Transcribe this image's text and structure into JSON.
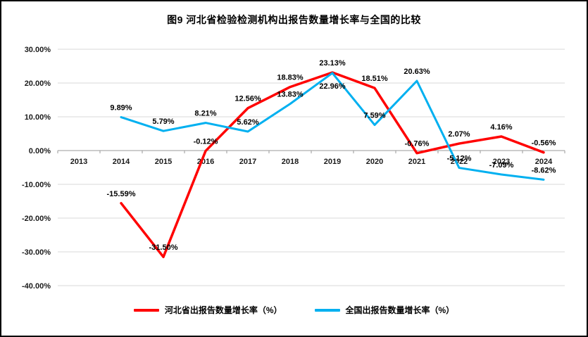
{
  "title": "图9 河北省检验检测机构出报告数量增长率与全国的比较",
  "chart_data": {
    "type": "line",
    "categories": [
      "2013",
      "2014",
      "2015",
      "2016",
      "2017",
      "2018",
      "2019",
      "2020",
      "2021",
      "2022",
      "2023",
      "2024"
    ],
    "series": [
      {
        "name": "河北省出报告数量增长率（%）",
        "color": "#FF0000",
        "values": [
          null,
          -15.59,
          -31.5,
          -0.12,
          12.56,
          18.83,
          23.13,
          18.51,
          -0.76,
          2.07,
          4.16,
          -0.56
        ]
      },
      {
        "name": "全国出报告数量增长率（%）",
        "color": "#00B0F0",
        "values": [
          null,
          9.89,
          5.79,
          8.21,
          5.62,
          13.83,
          22.96,
          7.59,
          20.63,
          -5.12,
          -7.09,
          -8.62
        ]
      }
    ],
    "ylim": [
      -40,
      30
    ],
    "yticks": [
      {
        "value": 30,
        "label": "30.00%"
      },
      {
        "value": 20,
        "label": "20.00%"
      },
      {
        "value": 10,
        "label": "10.00%"
      },
      {
        "value": 0,
        "label": "0.00%"
      },
      {
        "value": -10,
        "label": "-10.00%"
      },
      {
        "value": -20,
        "label": "-20.00%"
      },
      {
        "value": -30,
        "label": "-30.00%"
      },
      {
        "value": -40,
        "label": "-40.00%"
      }
    ],
    "grid": true,
    "legend_position": "bottom",
    "label_format": "0.00%"
  }
}
